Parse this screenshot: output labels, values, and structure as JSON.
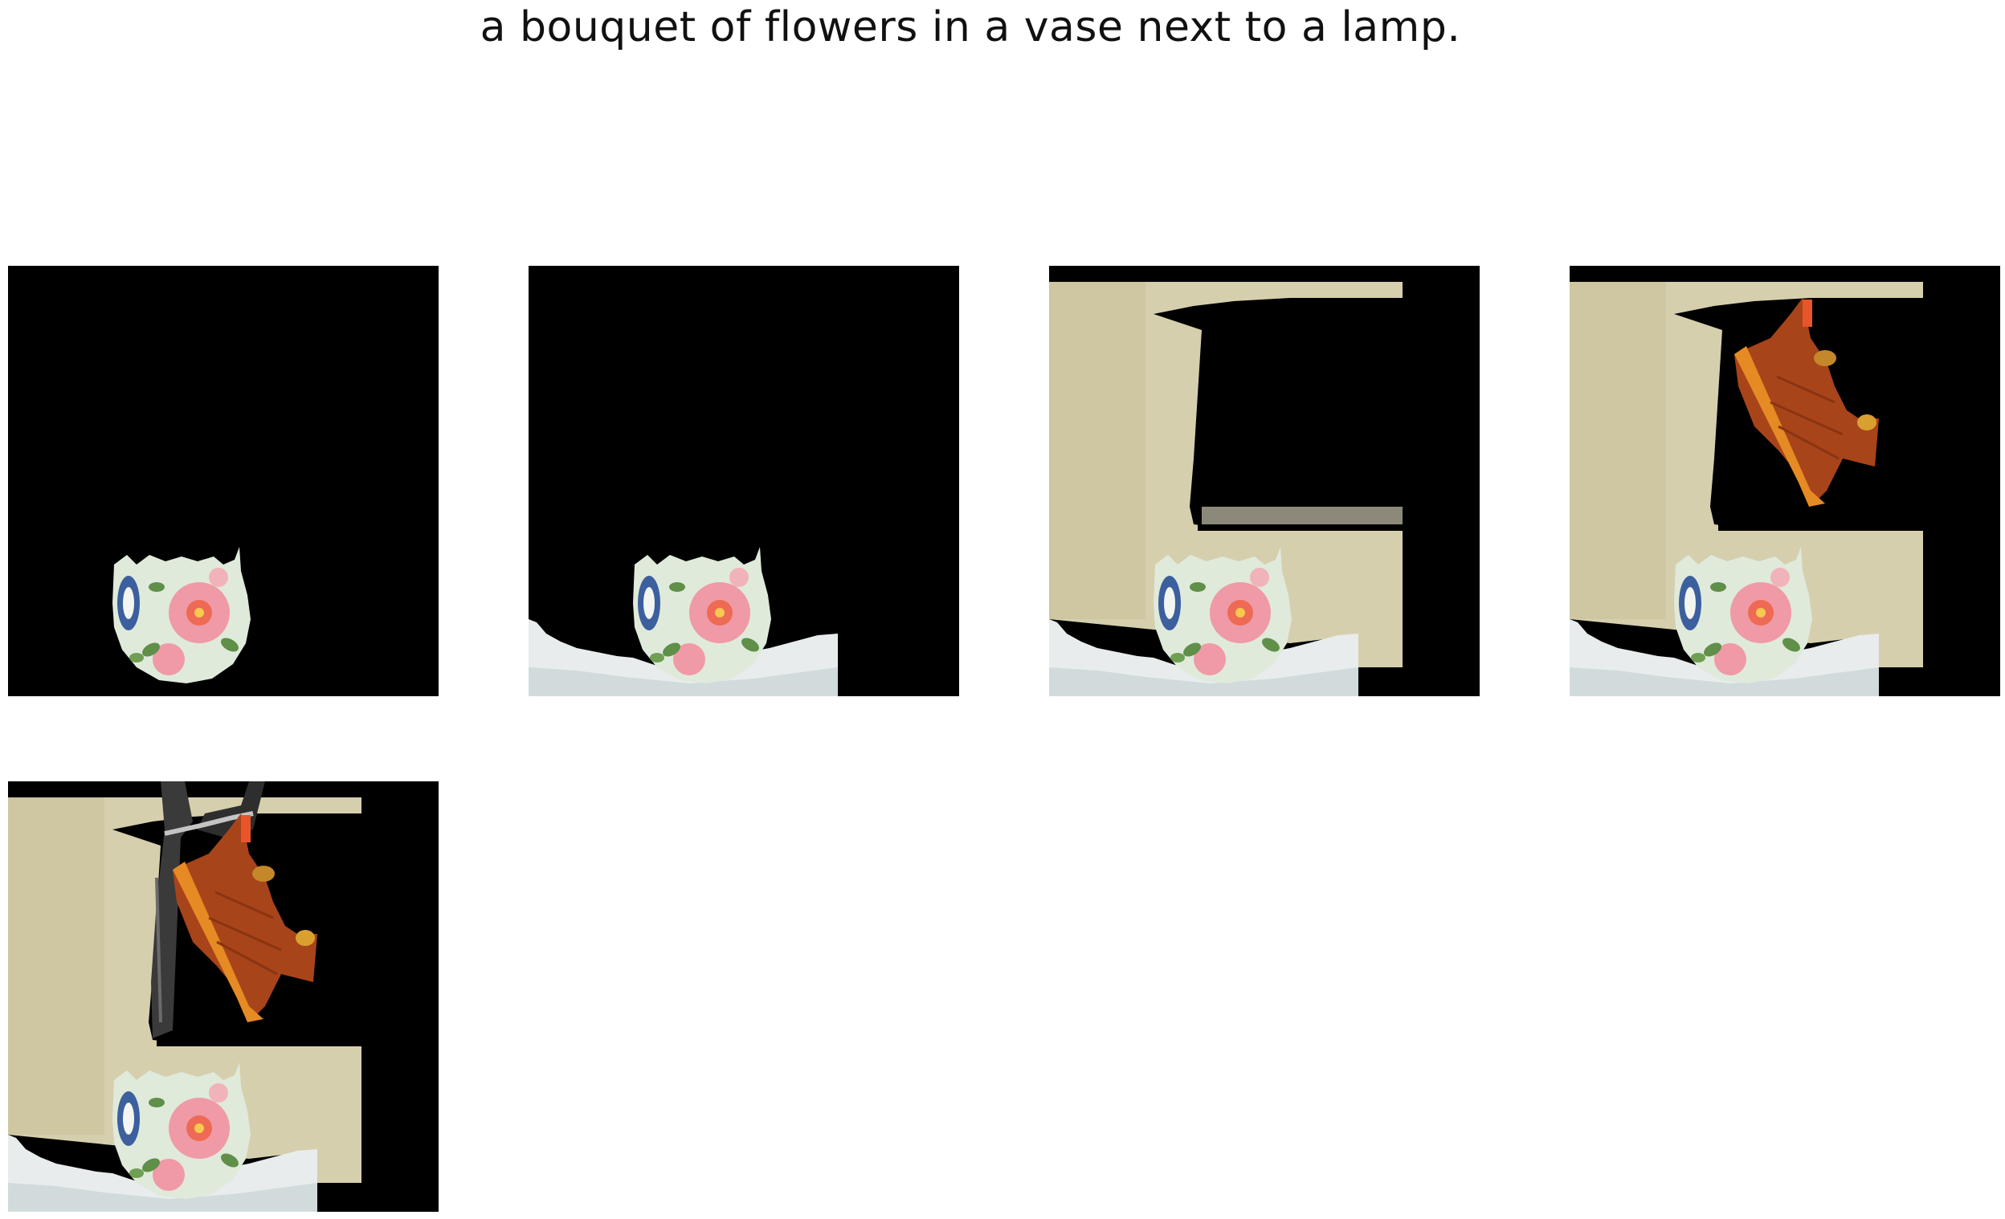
{
  "caption": "a bouquet of flowers in a vase next to a lamp.",
  "colors": {
    "background": "#ffffff",
    "mask": "#000000",
    "wall": "#d6cfae",
    "wall_shadow": "#bdb48e",
    "cloth": "#e8ecec",
    "vase_base": "#dfeadb",
    "flower_pink": "#ef9aa6",
    "flower_coral": "#ee6a55",
    "leaf": "#5f8f48",
    "blue_pattern": "#3c5f9e",
    "wood": "#a8441a",
    "wood_light": "#e68a24",
    "lamp": "#3a3a3a"
  },
  "panels": [
    {
      "name": "step-1",
      "layers": [
        "vase"
      ]
    },
    {
      "name": "step-2",
      "layers": [
        "cloth",
        "vase"
      ]
    },
    {
      "name": "step-3",
      "layers": [
        "wall",
        "cloth",
        "vase"
      ]
    },
    {
      "name": "step-4",
      "layers": [
        "wall",
        "cloth",
        "vase",
        "shelf"
      ]
    },
    {
      "name": "step-5",
      "layers": [
        "wall",
        "cloth",
        "vase",
        "shelf",
        "lamp"
      ]
    }
  ]
}
